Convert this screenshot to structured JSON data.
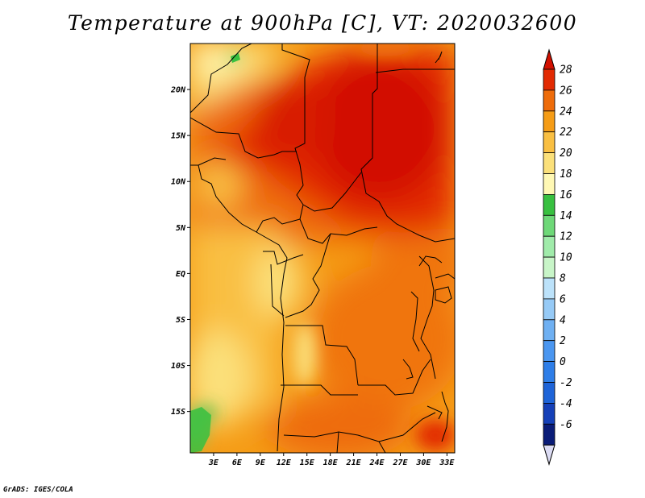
{
  "title": "Temperature at 900hPa [C], VT: 2020032600",
  "footer": "GrADS: IGES/COLA",
  "map": {
    "lon_range": [
      0,
      34
    ],
    "lat_range": [
      -19.5,
      25
    ],
    "lat_ticks": [
      {
        "value": 20,
        "label": "20N"
      },
      {
        "value": 15,
        "label": "15N"
      },
      {
        "value": 10,
        "label": "10N"
      },
      {
        "value": 5,
        "label": "5N"
      },
      {
        "value": 0,
        "label": "EQ"
      },
      {
        "value": -5,
        "label": "5S"
      },
      {
        "value": -10,
        "label": "10S"
      },
      {
        "value": -15,
        "label": "15S"
      }
    ],
    "lon_ticks": [
      {
        "value": 3,
        "label": "3E"
      },
      {
        "value": 6,
        "label": "6E"
      },
      {
        "value": 9,
        "label": "9E"
      },
      {
        "value": 12,
        "label": "12E"
      },
      {
        "value": 15,
        "label": "15E"
      },
      {
        "value": 18,
        "label": "18E"
      },
      {
        "value": 21,
        "label": "21E"
      },
      {
        "value": 24,
        "label": "24E"
      },
      {
        "value": 27,
        "label": "27E"
      },
      {
        "value": 30,
        "label": "30E"
      },
      {
        "value": 33,
        "label": "33E"
      }
    ]
  },
  "colorbar": {
    "levels": [
      "-6",
      "-4",
      "-2",
      "0",
      "2",
      "4",
      "6",
      "8",
      "10",
      "12",
      "14",
      "16",
      "18",
      "20",
      "22",
      "24",
      "26",
      "28"
    ],
    "colors": [
      "#0a1c78",
      "#1540b8",
      "#1e64d8",
      "#2e7ee8",
      "#4a96f0",
      "#6fb0f2",
      "#96caf6",
      "#bce2fa",
      "#c8f5c8",
      "#a0ebaa",
      "#6ed878",
      "#38c040",
      "#fff8b4",
      "#fbe07a",
      "#f9bf42",
      "#f59c16",
      "#ee6c0a",
      "#e22a02",
      "#d21000"
    ],
    "under_color": "#dcdcf4"
  }
}
